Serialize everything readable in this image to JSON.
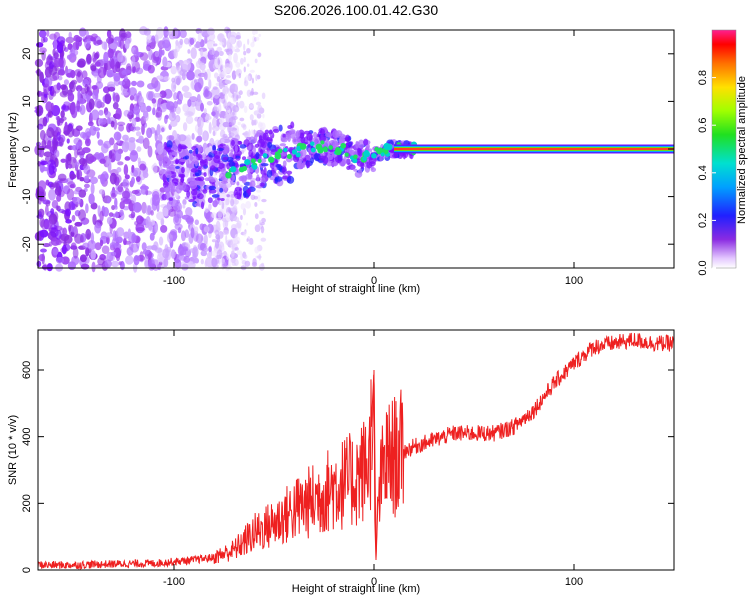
{
  "title": "S206.2026.100.01.42.G30",
  "chart_data": [
    {
      "type": "heatmap",
      "xlabel": "Height of straight line (km)",
      "ylabel": "Frequency (Hz)",
      "xlim": [
        -168,
        150
      ],
      "ylim": [
        -25,
        25
      ],
      "x_ticks": [
        -100,
        0,
        100
      ],
      "y_ticks": [
        -20,
        -10,
        0,
        10,
        20
      ],
      "colorbar": {
        "label": "Normalized spectral amplitude",
        "range": [
          0,
          1
        ],
        "ticks": [
          0.0,
          0.2,
          0.4,
          0.6,
          0.8
        ],
        "tick_labels": [
          "0.0",
          "0.2",
          "0.4",
          "0.6",
          "0.8"
        ]
      },
      "ridge": [
        {
          "x": -100,
          "y": -5
        },
        {
          "x": -85,
          "y": -6
        },
        {
          "x": -75,
          "y": -5
        },
        {
          "x": -65,
          "y": -4
        },
        {
          "x": -55,
          "y": -2
        },
        {
          "x": -45,
          "y": -1
        },
        {
          "x": -35,
          "y": 0
        },
        {
          "x": -25,
          "y": 0.5
        },
        {
          "x": -15,
          "y": 0
        },
        {
          "x": -8,
          "y": -2
        },
        {
          "x": 0,
          "y": -1
        },
        {
          "x": 10,
          "y": 0
        },
        {
          "x": 20,
          "y": 0
        },
        {
          "x": 150,
          "y": 0
        }
      ]
    },
    {
      "type": "line",
      "xlabel": "Height of straight line (km)",
      "ylabel": "SNR (10 * v/v)",
      "xlim": [
        -168,
        150
      ],
      "ylim": [
        0,
        720
      ],
      "x_ticks": [
        -100,
        0,
        100
      ],
      "y_ticks": [
        0,
        200,
        400,
        600
      ],
      "color": "#ee2020",
      "series": [
        {
          "x": [
            -168,
            -150,
            -130,
            -110,
            -90,
            -80,
            -70,
            -60,
            -50,
            -40,
            -30,
            -20,
            -10,
            -5,
            -2,
            0,
            1,
            2,
            5,
            10,
            20,
            30,
            40,
            50,
            60,
            70,
            80,
            90,
            100,
            110,
            120,
            130,
            140,
            150
          ],
          "y": [
            15,
            15,
            18,
            20,
            30,
            38,
            60,
            110,
            140,
            180,
            210,
            250,
            270,
            300,
            340,
            600,
            30,
            200,
            320,
            340,
            370,
            390,
            410,
            410,
            410,
            430,
            480,
            560,
            620,
            670,
            680,
            690,
            680,
            680
          ]
        }
      ]
    }
  ]
}
